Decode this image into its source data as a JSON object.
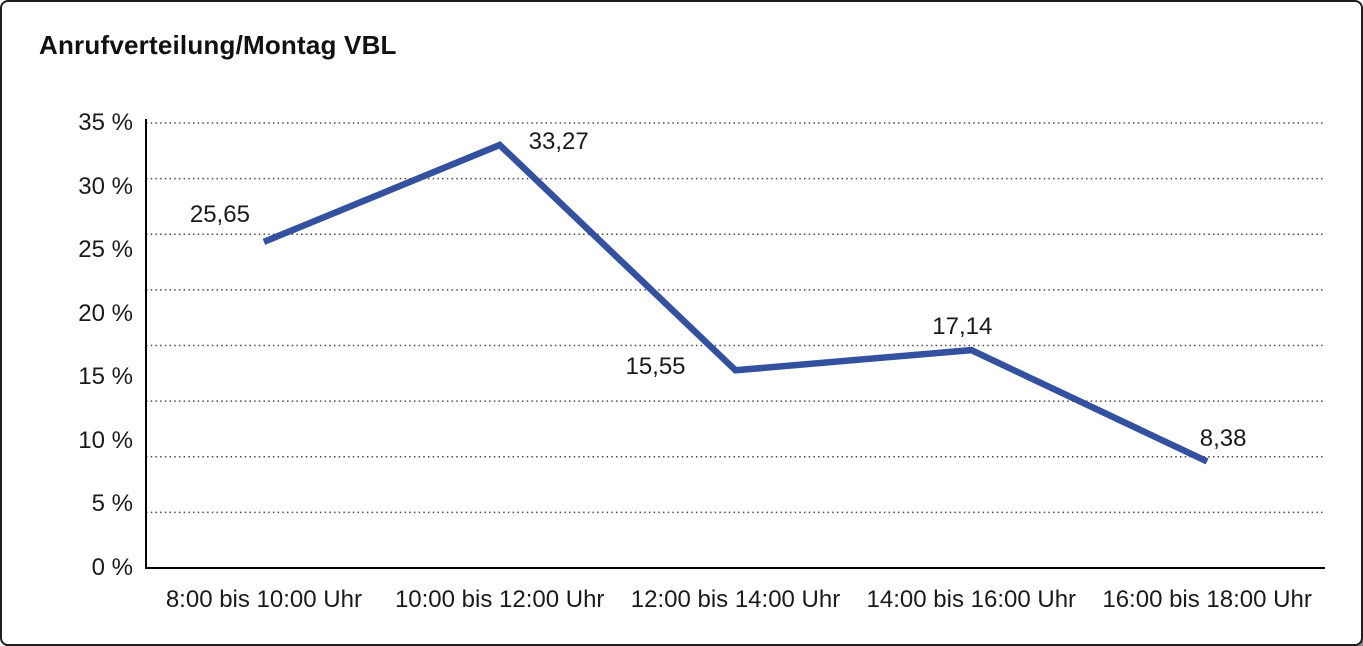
{
  "chart_data": {
    "type": "line",
    "title": "Anrufverteilung/Montag VBL",
    "categories": [
      "8:00 bis 10:00 Uhr",
      "10:00 bis 12:00 Uhr",
      "12:00 bis 14:00 Uhr",
      "14:00 bis 16:00 Uhr",
      "16:00 bis 18:00 Uhr"
    ],
    "values": [
      25.65,
      33.27,
      15.55,
      17.14,
      8.38
    ],
    "point_labels": [
      "25,65",
      "33,27",
      "15,55",
      "17,14",
      "8,38"
    ],
    "yticks": [
      "35 %",
      "30 %",
      "25 %",
      "20 %",
      "15 %",
      "10 %",
      "5 %",
      "0 %"
    ],
    "ylim": [
      0,
      35
    ],
    "xlabel": "",
    "ylabel": "",
    "grid": "horizontal-dotted",
    "legend": "none",
    "line_color": "#33519E",
    "axis_color": "#000000",
    "gridline_color": "#4a4a4a",
    "text_color": "#1a1a1a"
  }
}
